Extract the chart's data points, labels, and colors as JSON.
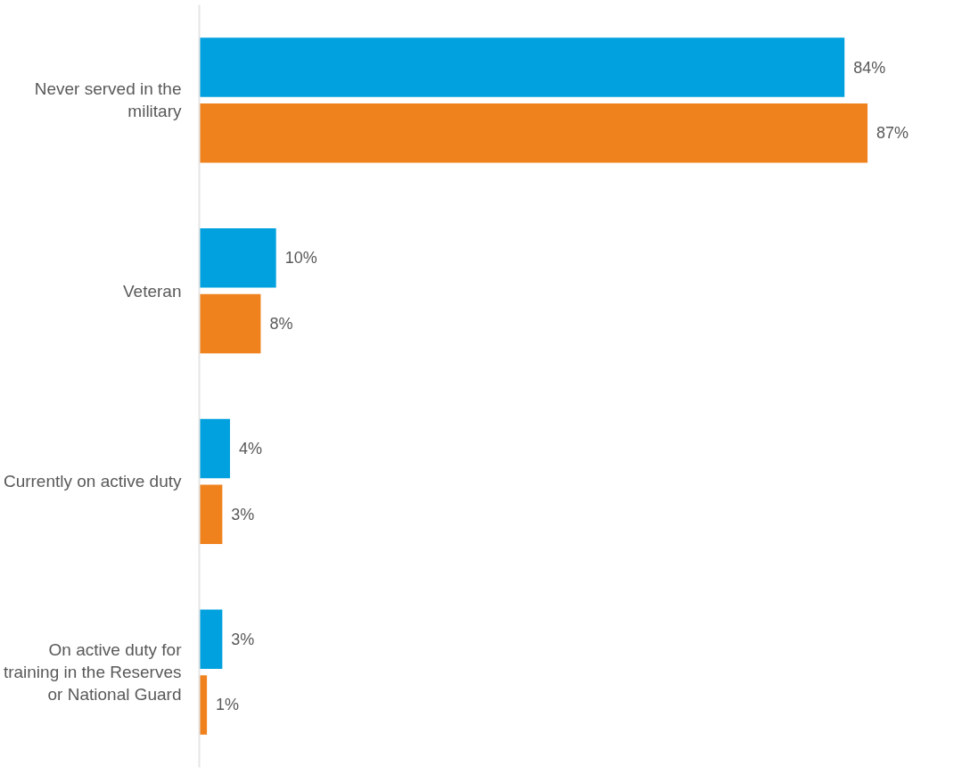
{
  "chart_data": {
    "type": "bar",
    "orientation": "horizontal",
    "categories": [
      "Never served in the military",
      "Veteran",
      "Currently on active duty",
      "On active duty for training in the Reserves or National Guard"
    ],
    "series": [
      {
        "color": "#00a1de",
        "values": [
          84,
          10,
          4,
          3
        ],
        "value_labels": [
          "84%",
          "10%",
          "4%",
          "3%"
        ]
      },
      {
        "color": "#f0821e",
        "values": [
          87,
          8,
          3,
          1
        ],
        "value_labels": [
          "87%",
          "8%",
          "3%",
          "1%"
        ]
      }
    ],
    "tick_labels": "y"
  }
}
